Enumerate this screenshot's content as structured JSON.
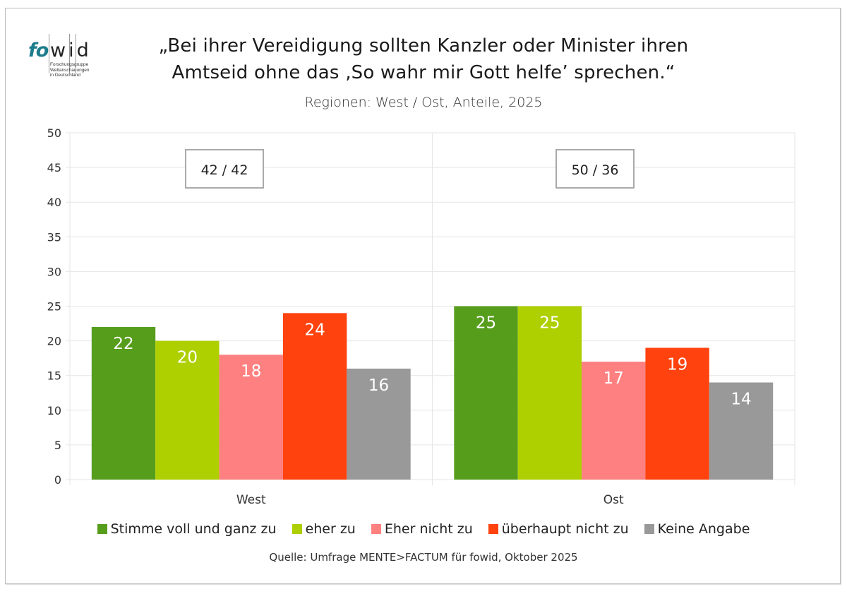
{
  "logo": {
    "brand_a": "fo",
    "brand_b": "wid",
    "tagline": [
      "Forschungsgruppe",
      "Weltanschauungen",
      "in Deutschland"
    ]
  },
  "header": {
    "title_line1": "„Bei ihrer Vereidigung sollten Kanzler oder Minister ihren",
    "title_line2": "Amtseid ohne das ‚So wahr mir Gott helfe’ sprechen.“",
    "subtitle": "Regionen: West / Ost, Anteile, 2025"
  },
  "source": "Quelle: Umfrage MENTE>FACTUM für fowid, Oktober 2025",
  "chart_data": {
    "type": "bar",
    "title": "„Bei ihrer Vereidigung sollten Kanzler oder Minister ihren Amtseid ohne das ‚So wahr mir Gott helfe’ sprechen.“",
    "subtitle": "Regionen: West / Ost, Anteile, 2025",
    "xlabel": "",
    "ylabel": "",
    "ylim": [
      0,
      50
    ],
    "yticks": [
      0,
      5,
      10,
      15,
      20,
      25,
      30,
      35,
      40,
      45,
      50
    ],
    "grid": true,
    "legend_position": "bottom",
    "categories": [
      "West",
      "Ost"
    ],
    "series": [
      {
        "name": "Stimme voll und ganz zu",
        "color": "#579d1c",
        "values": [
          22,
          25
        ]
      },
      {
        "name": "eher zu",
        "color": "#aecf00",
        "values": [
          20,
          25
        ]
      },
      {
        "name": "Eher nicht zu",
        "color": "#ff8080",
        "values": [
          18,
          17
        ]
      },
      {
        "name": "überhaupt nicht zu",
        "color": "#ff420e",
        "values": [
          24,
          19
        ]
      },
      {
        "name": "Keine Angabe",
        "color": "#999999",
        "values": [
          16,
          14
        ]
      }
    ],
    "annotations": [
      {
        "category": "West",
        "text": "42 / 42"
      },
      {
        "category": "Ost",
        "text": "50 / 36"
      }
    ]
  }
}
